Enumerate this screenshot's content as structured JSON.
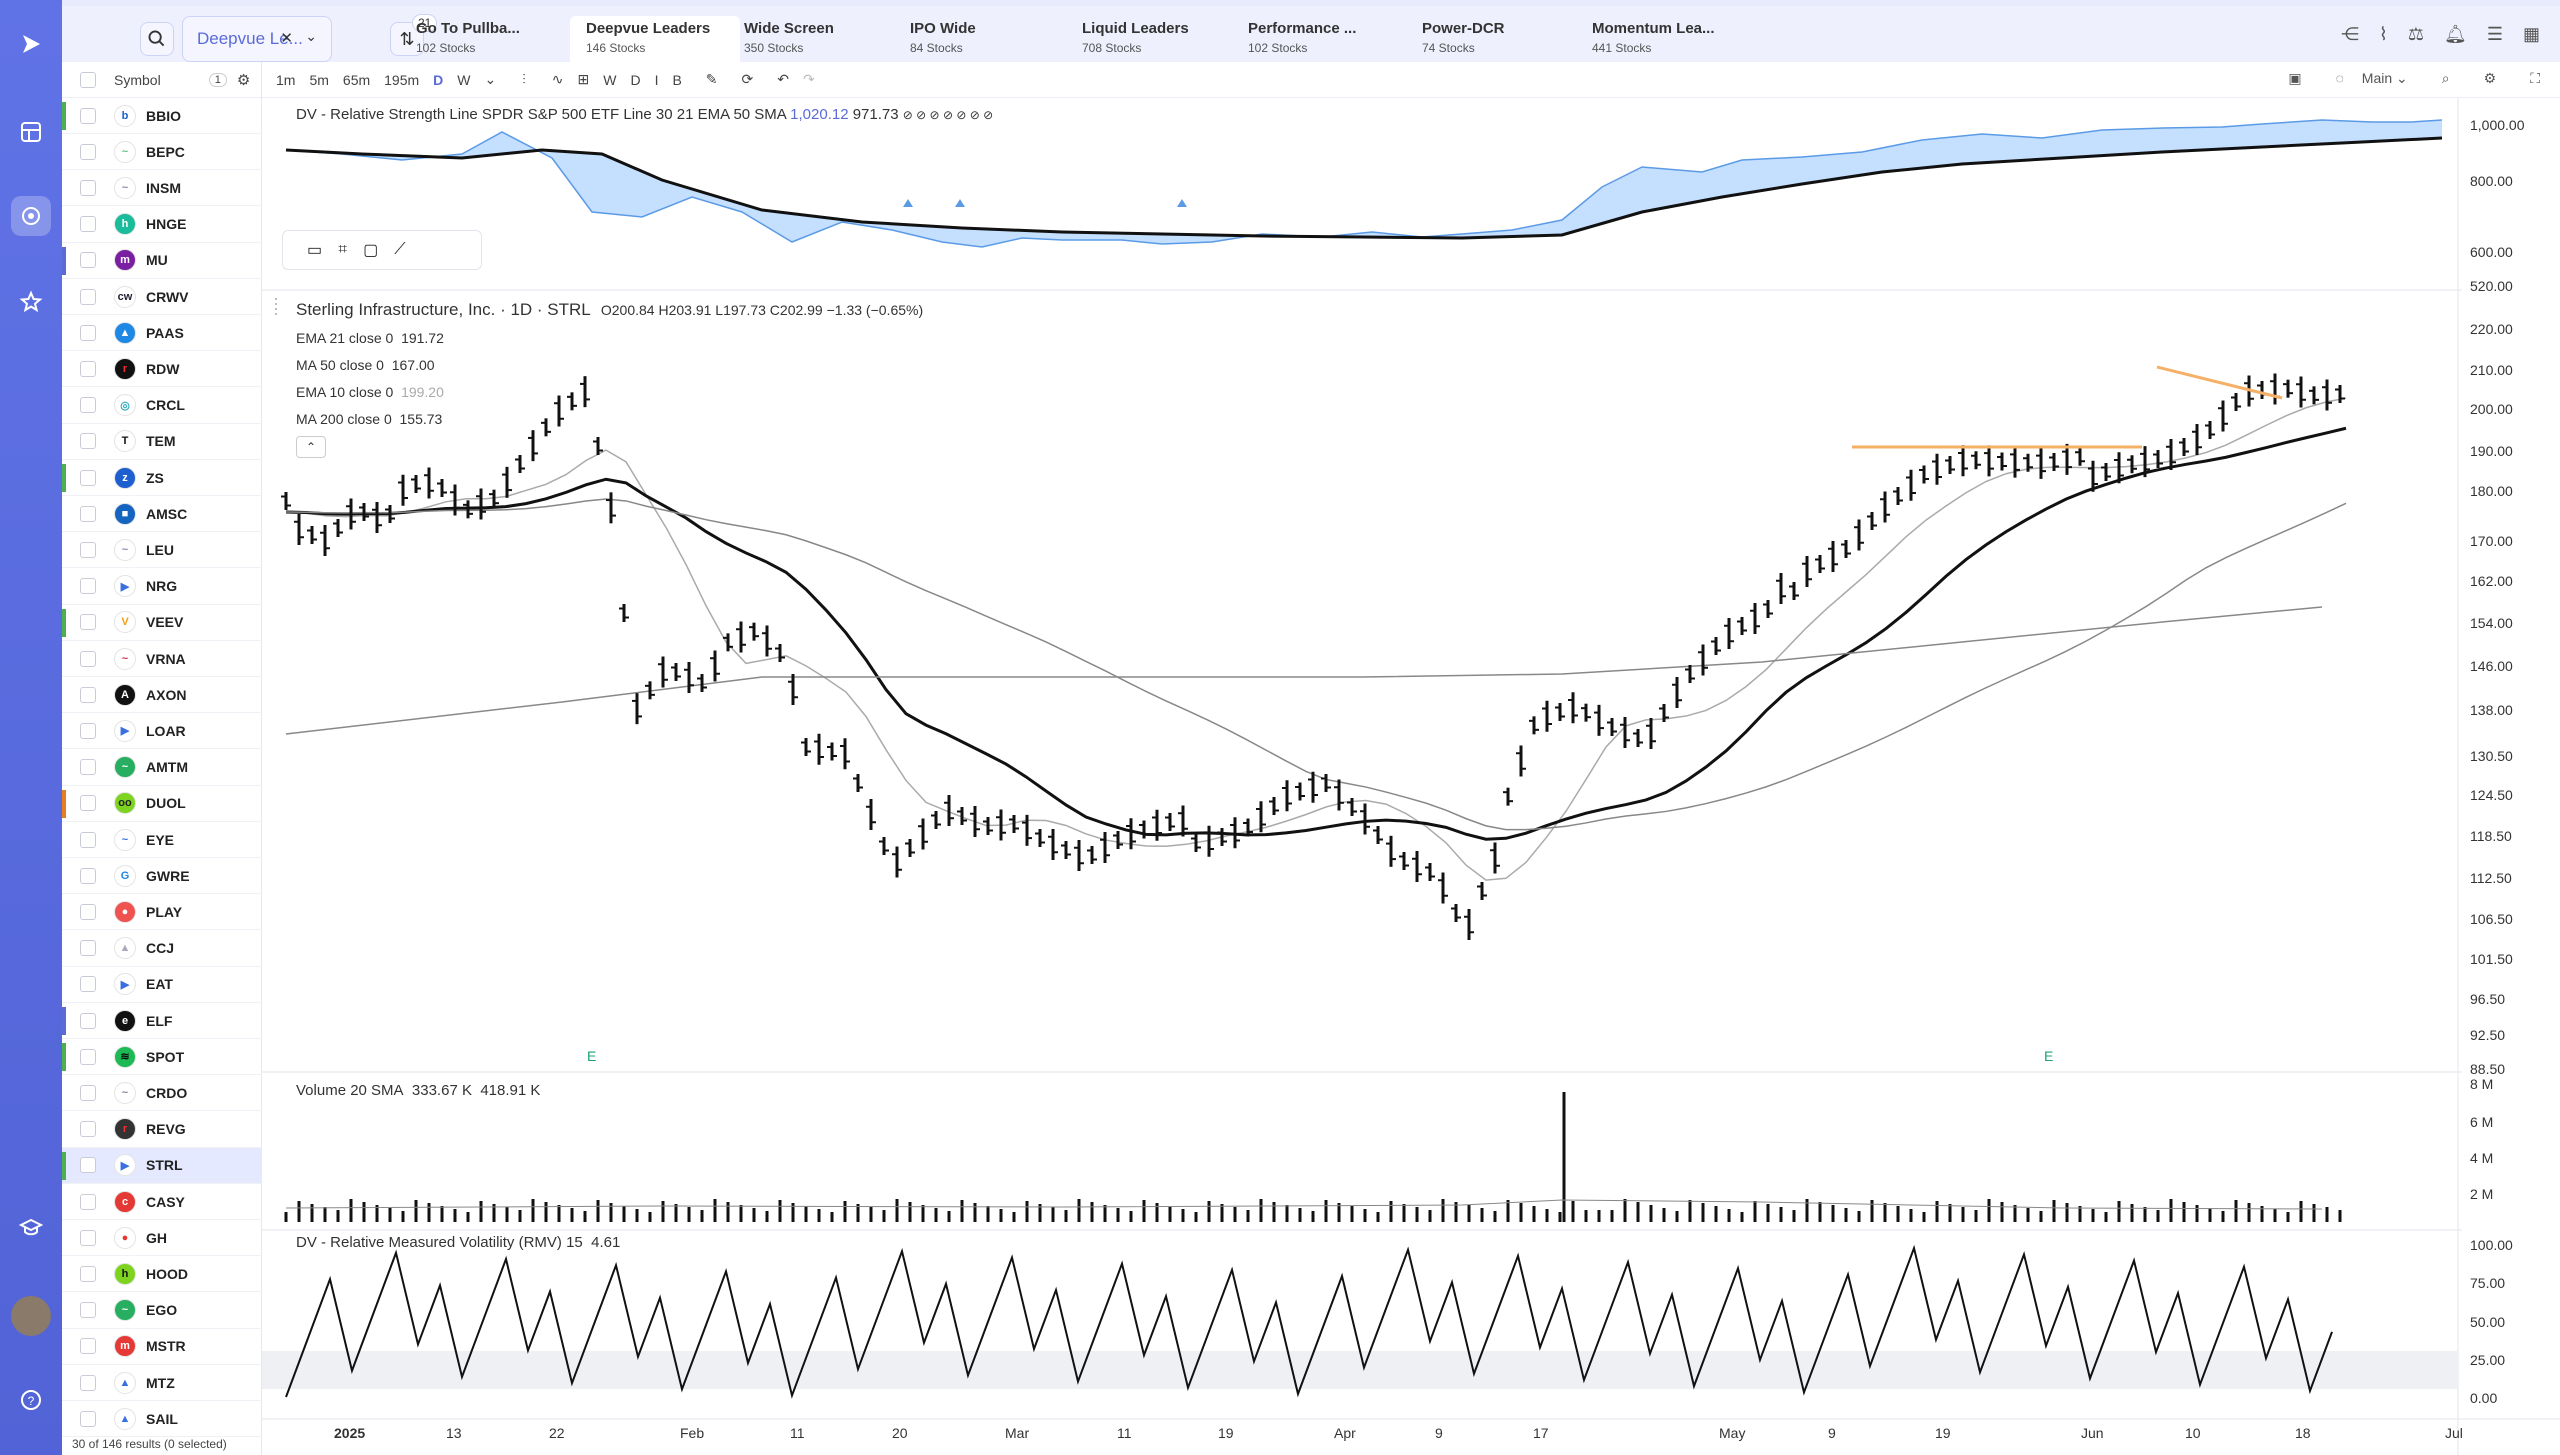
{
  "topbar": {
    "watchlist": "Deepvue Le...",
    "filter_badge": "21",
    "tabs": [
      {
        "title": "Go To Pullba...",
        "sub": "102 Stocks"
      },
      {
        "title": "Deepvue Leaders",
        "sub": "146 Stocks"
      },
      {
        "title": "Wide Screen",
        "sub": "350 Stocks"
      },
      {
        "title": "IPO Wide",
        "sub": "84 Stocks"
      },
      {
        "title": "Liquid Leaders",
        "sub": "708 Stocks"
      },
      {
        "title": "Performance ...",
        "sub": "102 Stocks"
      },
      {
        "title": "Power-DCR",
        "sub": "74 Stocks"
      },
      {
        "title": "Momentum Lea...",
        "sub": "441 Stocks"
      }
    ]
  },
  "list": {
    "header": "Symbol",
    "header_count": "1",
    "footer": "30 of 146 results (0 selected)",
    "rows": [
      {
        "sym": "BBIO",
        "bar": "#4caf50",
        "logo": "#ffffff",
        "glyph": "b",
        "gc": "#1a5fd0"
      },
      {
        "sym": "BEPC",
        "bar": "",
        "logo": "#ffffff",
        "glyph": "~",
        "gc": "#6b8"
      },
      {
        "sym": "INSM",
        "bar": "",
        "logo": "#ffffff",
        "glyph": "~",
        "gc": "#88a"
      },
      {
        "sym": "HNGE",
        "bar": "",
        "logo": "#1abc9c",
        "glyph": "h",
        "gc": "#fff"
      },
      {
        "sym": "MU",
        "bar": "#5a6bd8",
        "logo": "#7a1fa2",
        "glyph": "m",
        "gc": "#fff"
      },
      {
        "sym": "CRWV",
        "bar": "",
        "logo": "#ffffff",
        "glyph": "cw",
        "gc": "#223"
      },
      {
        "sym": "PAAS",
        "bar": "",
        "logo": "#1e88e5",
        "glyph": "▲",
        "gc": "#fff"
      },
      {
        "sym": "RDW",
        "bar": "",
        "logo": "#111111",
        "glyph": "r",
        "gc": "#e33"
      },
      {
        "sym": "CRCL",
        "bar": "",
        "logo": "#ffffff",
        "glyph": "◎",
        "gc": "#3ab"
      },
      {
        "sym": "TEM",
        "bar": "",
        "logo": "#ffffff",
        "glyph": "T",
        "gc": "#111"
      },
      {
        "sym": "ZS",
        "bar": "#4caf50",
        "logo": "#1e5fd0",
        "glyph": "z",
        "gc": "#fff"
      },
      {
        "sym": "AMSC",
        "bar": "",
        "logo": "#1565c0",
        "glyph": "■",
        "gc": "#fff"
      },
      {
        "sym": "LEU",
        "bar": "",
        "logo": "#ffffff",
        "glyph": "~",
        "gc": "#88a"
      },
      {
        "sym": "NRG",
        "bar": "",
        "logo": "#ffffff",
        "glyph": "▶",
        "gc": "#3a6fe0"
      },
      {
        "sym": "VEEV",
        "bar": "#4caf50",
        "logo": "#ffffff",
        "glyph": "V",
        "gc": "#f39c12"
      },
      {
        "sym": "VRNA",
        "bar": "",
        "logo": "#ffffff",
        "glyph": "~",
        "gc": "#c35"
      },
      {
        "sym": "AXON",
        "bar": "",
        "logo": "#111111",
        "glyph": "A",
        "gc": "#fff"
      },
      {
        "sym": "LOAR",
        "bar": "",
        "logo": "#ffffff",
        "glyph": "▶",
        "gc": "#3a6fe0"
      },
      {
        "sym": "AMTM",
        "bar": "",
        "logo": "#27ae60",
        "glyph": "~",
        "gc": "#fff"
      },
      {
        "sym": "DUOL",
        "bar": "#e67e22",
        "logo": "#7ed321",
        "glyph": "oo",
        "gc": "#222"
      },
      {
        "sym": "EYE",
        "bar": "",
        "logo": "#ffffff",
        "glyph": "~",
        "gc": "#3a6fe0"
      },
      {
        "sym": "GWRE",
        "bar": "",
        "logo": "#ffffff",
        "glyph": "G",
        "gc": "#1e88e5"
      },
      {
        "sym": "PLAY",
        "bar": "",
        "logo": "#ef5350",
        "glyph": "●",
        "gc": "#fff"
      },
      {
        "sym": "CCJ",
        "bar": "",
        "logo": "#ffffff",
        "glyph": "▲",
        "gc": "#aab"
      },
      {
        "sym": "EAT",
        "bar": "",
        "logo": "#ffffff",
        "glyph": "▶",
        "gc": "#3a6fe0"
      },
      {
        "sym": "ELF",
        "bar": "#5a6bd8",
        "logo": "#111111",
        "glyph": "e",
        "gc": "#fff"
      },
      {
        "sym": "SPOT",
        "bar": "#4caf50",
        "logo": "#1db954",
        "glyph": "≋",
        "gc": "#111"
      },
      {
        "sym": "CRDO",
        "bar": "",
        "logo": "#ffffff",
        "glyph": "~",
        "gc": "#889"
      },
      {
        "sym": "REVG",
        "bar": "",
        "logo": "#333333",
        "glyph": "r",
        "gc": "#e33"
      },
      {
        "sym": "STRL",
        "bar": "#4caf50",
        "logo": "#ffffff",
        "glyph": "▶",
        "gc": "#3a6fe0"
      },
      {
        "sym": "CASY",
        "bar": "",
        "logo": "#e53935",
        "glyph": "c",
        "gc": "#fff"
      },
      {
        "sym": "GH",
        "bar": "",
        "logo": "#ffffff",
        "glyph": "●",
        "gc": "#e53935"
      },
      {
        "sym": "HOOD",
        "bar": "",
        "logo": "#7ed321",
        "glyph": "h",
        "gc": "#111"
      },
      {
        "sym": "EGO",
        "bar": "",
        "logo": "#27ae60",
        "glyph": "~",
        "gc": "#fff"
      },
      {
        "sym": "MSTR",
        "bar": "",
        "logo": "#e53935",
        "glyph": "m",
        "gc": "#fff"
      },
      {
        "sym": "MTZ",
        "bar": "",
        "logo": "#ffffff",
        "glyph": "▲",
        "gc": "#3a6fe0"
      },
      {
        "sym": "SAIL",
        "bar": "",
        "logo": "#ffffff",
        "glyph": "▲",
        "gc": "#3a6fe0"
      }
    ]
  },
  "toolbar": {
    "tf": [
      "1m",
      "5m",
      "65m",
      "195m",
      "D",
      "W"
    ],
    "letters": [
      "W",
      "D",
      "I",
      "B"
    ],
    "layout": "Main"
  },
  "rs_panel": {
    "title": "DV - Relative Strength Line SPDR S&P 500 ETF Line 30 21 EMA 50 SMA",
    "v1": "1,020.12",
    "v2": "971.73",
    "flags": "⊘ ⊘ ⊘ ⊘ ⊘ ⊘ ⊘",
    "ticks": [
      "1,000.00",
      "800.00",
      "600.00",
      "520.00"
    ]
  },
  "price": {
    "title": "Sterling Infrastructure, Inc. · 1D · STRL",
    "ohlc": "O200.84  H203.91  L197.73  C202.99  −1.33 (−0.65%)",
    "ma": [
      {
        "label": "EMA 21 close 0",
        "value": "191.72",
        "gray": false
      },
      {
        "label": "MA 50 close 0",
        "value": "167.00",
        "gray": false
      },
      {
        "label": "EMA 10 close 0",
        "value": "199.20",
        "gray": true
      },
      {
        "label": "MA 200 close 0",
        "value": "155.73",
        "gray": false
      }
    ],
    "ticks": [
      "220.00",
      "210.00",
      "200.00",
      "190.00",
      "180.00",
      "170.00",
      "162.00",
      "154.00",
      "146.00",
      "138.00",
      "130.50",
      "124.50",
      "118.50",
      "112.50",
      "106.50",
      "101.50",
      "96.50",
      "92.50",
      "88.50"
    ],
    "earnings_marker": "E"
  },
  "volume": {
    "title": "Volume 20 SMA",
    "v1": "333.67 K",
    "v2": "418.91 K",
    "ticks": [
      "8 M",
      "6 M",
      "4 M",
      "2 M"
    ]
  },
  "rmv": {
    "title": "DV - Relative Measured Volatility (RMV) 15",
    "v": "4.61",
    "ticks": [
      "100.00",
      "75.00",
      "50.00",
      "25.00",
      "0.00"
    ]
  },
  "xaxis": [
    {
      "t": "2025",
      "bold": true
    },
    {
      "t": "13"
    },
    {
      "t": "22"
    },
    {
      "t": "Feb"
    },
    {
      "t": "11"
    },
    {
      "t": "20"
    },
    {
      "t": "Mar"
    },
    {
      "t": "11"
    },
    {
      "t": "19"
    },
    {
      "t": "Apr"
    },
    {
      "t": "9"
    },
    {
      "t": "17"
    },
    {
      "t": "May"
    },
    {
      "t": "9"
    },
    {
      "t": "19"
    },
    {
      "t": "Jun"
    },
    {
      "t": "10"
    },
    {
      "t": "18"
    },
    {
      "t": "Jul"
    }
  ]
}
